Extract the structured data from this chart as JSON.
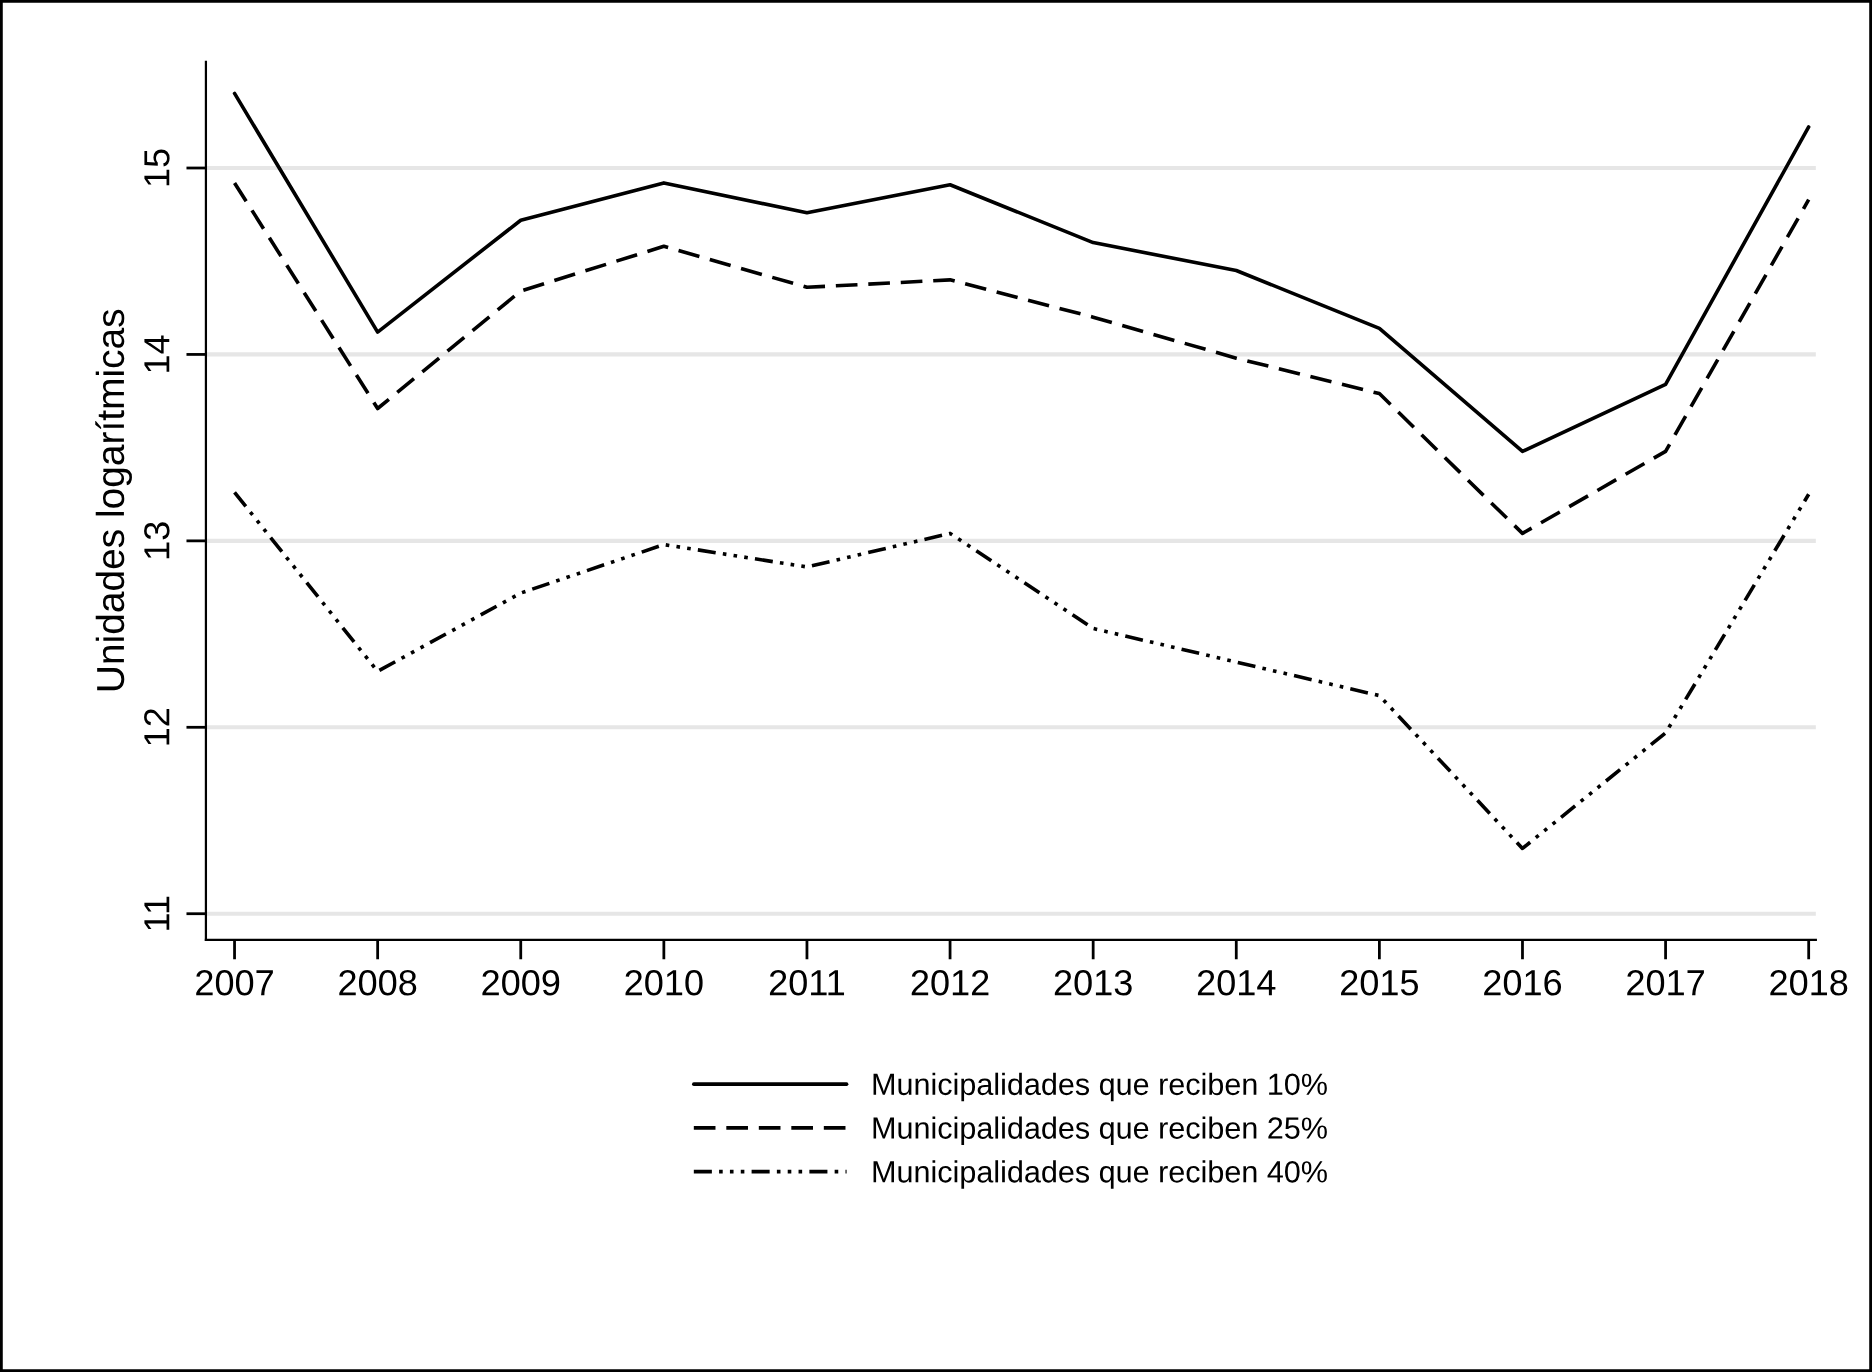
{
  "chart_data": {
    "type": "line",
    "ylabel": "Unidades logarítmicas",
    "x": [
      2007,
      2008,
      2009,
      2010,
      2011,
      2012,
      2013,
      2014,
      2015,
      2016,
      2017,
      2018
    ],
    "series": [
      {
        "name": "Municipalidades que reciben 10%",
        "color": "#000000",
        "line_style": "solid",
        "values": [
          15.4,
          14.12,
          14.72,
          14.92,
          14.76,
          14.91,
          14.6,
          14.45,
          14.14,
          13.48,
          13.84,
          15.22
        ]
      },
      {
        "name": "Municipalidades que reciben 25%",
        "color": "#000000",
        "line_style": "dashed",
        "values": [
          14.92,
          13.71,
          14.34,
          14.58,
          14.36,
          14.4,
          14.2,
          13.98,
          13.79,
          13.04,
          13.48,
          14.83
        ]
      },
      {
        "name": "Municipalidades que reciben 40%",
        "color": "#000000",
        "line_style": "dotted",
        "values": [
          13.26,
          12.3,
          12.72,
          12.98,
          12.86,
          13.04,
          12.53,
          12.35,
          12.17,
          11.35,
          11.97,
          13.25
        ]
      }
    ],
    "xlim": [
      2006.8,
      2018.05
    ],
    "ylim": [
      10.86,
      15.57
    ],
    "xticks": [
      2007,
      2008,
      2009,
      2010,
      2011,
      2012,
      2013,
      2014,
      2015,
      2016,
      2017,
      2018
    ],
    "yticks": [
      11,
      12,
      13,
      14,
      15
    ],
    "grid": "y",
    "legend": "bottom"
  }
}
